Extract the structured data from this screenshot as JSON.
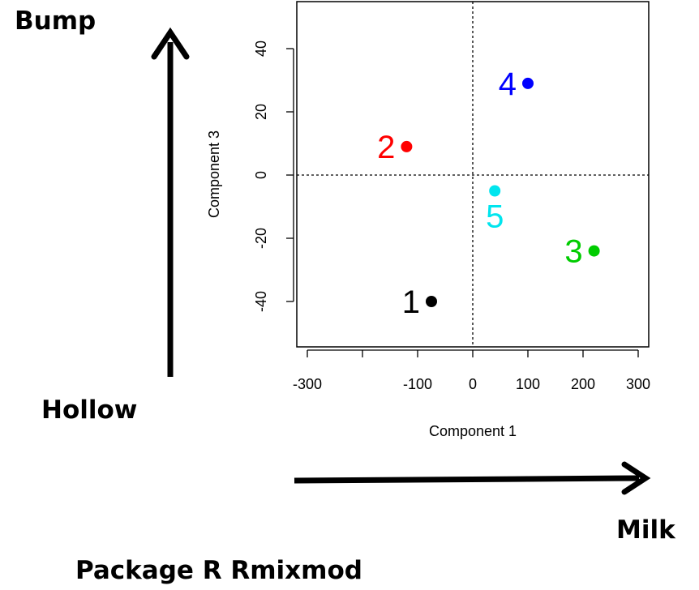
{
  "annotations": {
    "top_left": "Bump",
    "bottom_left": "Hollow",
    "bottom_right": "Milk",
    "footer": "Package R Rmixmod"
  },
  "chart_data": {
    "type": "scatter",
    "xlabel": "Component 1",
    "ylabel": "Component 3",
    "xlim": [
      -320,
      320
    ],
    "ylim": [
      -55,
      55
    ],
    "xticks": [
      -300,
      -200,
      -100,
      0,
      100,
      200,
      300
    ],
    "xticklabels": [
      "-300",
      "",
      "-100",
      "0",
      "100",
      "200",
      "300"
    ],
    "yticks": [
      -40,
      -20,
      0,
      20,
      40
    ],
    "yticklabels": [
      "-40",
      "-20",
      "0",
      "20",
      "40"
    ],
    "reference_lines": {
      "x": 0,
      "y": 0,
      "style": "dotted"
    },
    "points": [
      {
        "label": "1",
        "x": -75,
        "y": -40,
        "color": "#000000"
      },
      {
        "label": "2",
        "x": -120,
        "y": 9,
        "color": "#ff0000"
      },
      {
        "label": "3",
        "x": 220,
        "y": -24,
        "color": "#00cc00"
      },
      {
        "label": "4",
        "x": 100,
        "y": 29,
        "color": "#0000ff"
      },
      {
        "label": "5",
        "x": 40,
        "y": -5,
        "color": "#00e5ee"
      }
    ]
  }
}
